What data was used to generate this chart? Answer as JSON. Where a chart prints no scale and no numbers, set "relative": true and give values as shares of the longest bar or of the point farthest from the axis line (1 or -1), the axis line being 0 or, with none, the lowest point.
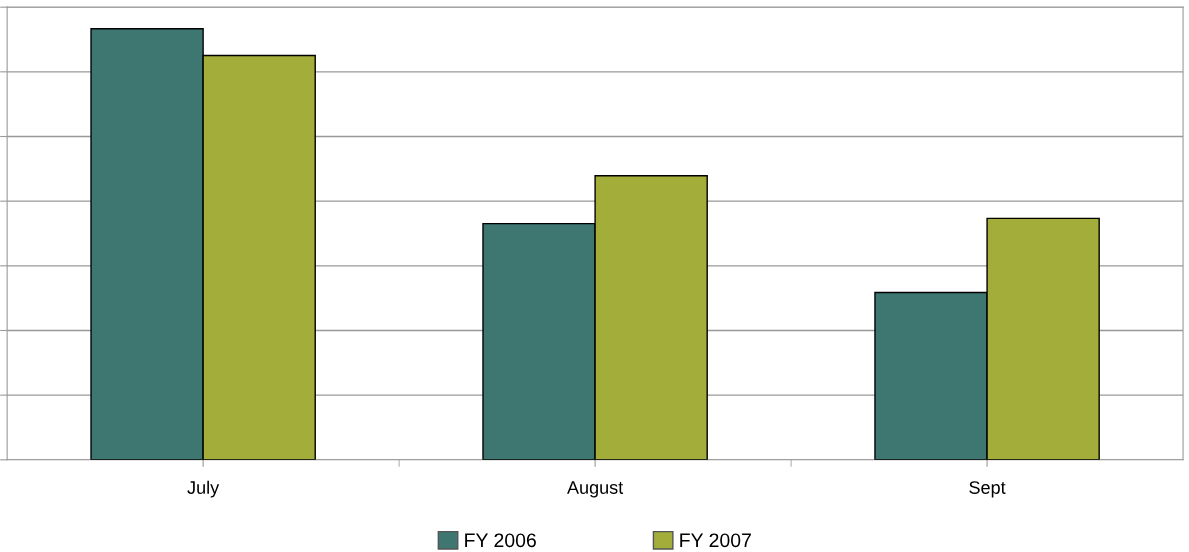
{
  "chart_data": {
    "type": "bar",
    "relative": true,
    "categories": [
      "July",
      "August",
      "Sept"
    ],
    "series": [
      {
        "name": "FY 2006",
        "color": "#3e7672",
        "values": [
          1,
          0.548,
          0.388
        ]
      },
      {
        "name": "FY 2007",
        "color": "#a3ad3a",
        "values": [
          0.938,
          0.659,
          0.56
        ]
      }
    ],
    "grid": "y",
    "legend": "bottom"
  }
}
